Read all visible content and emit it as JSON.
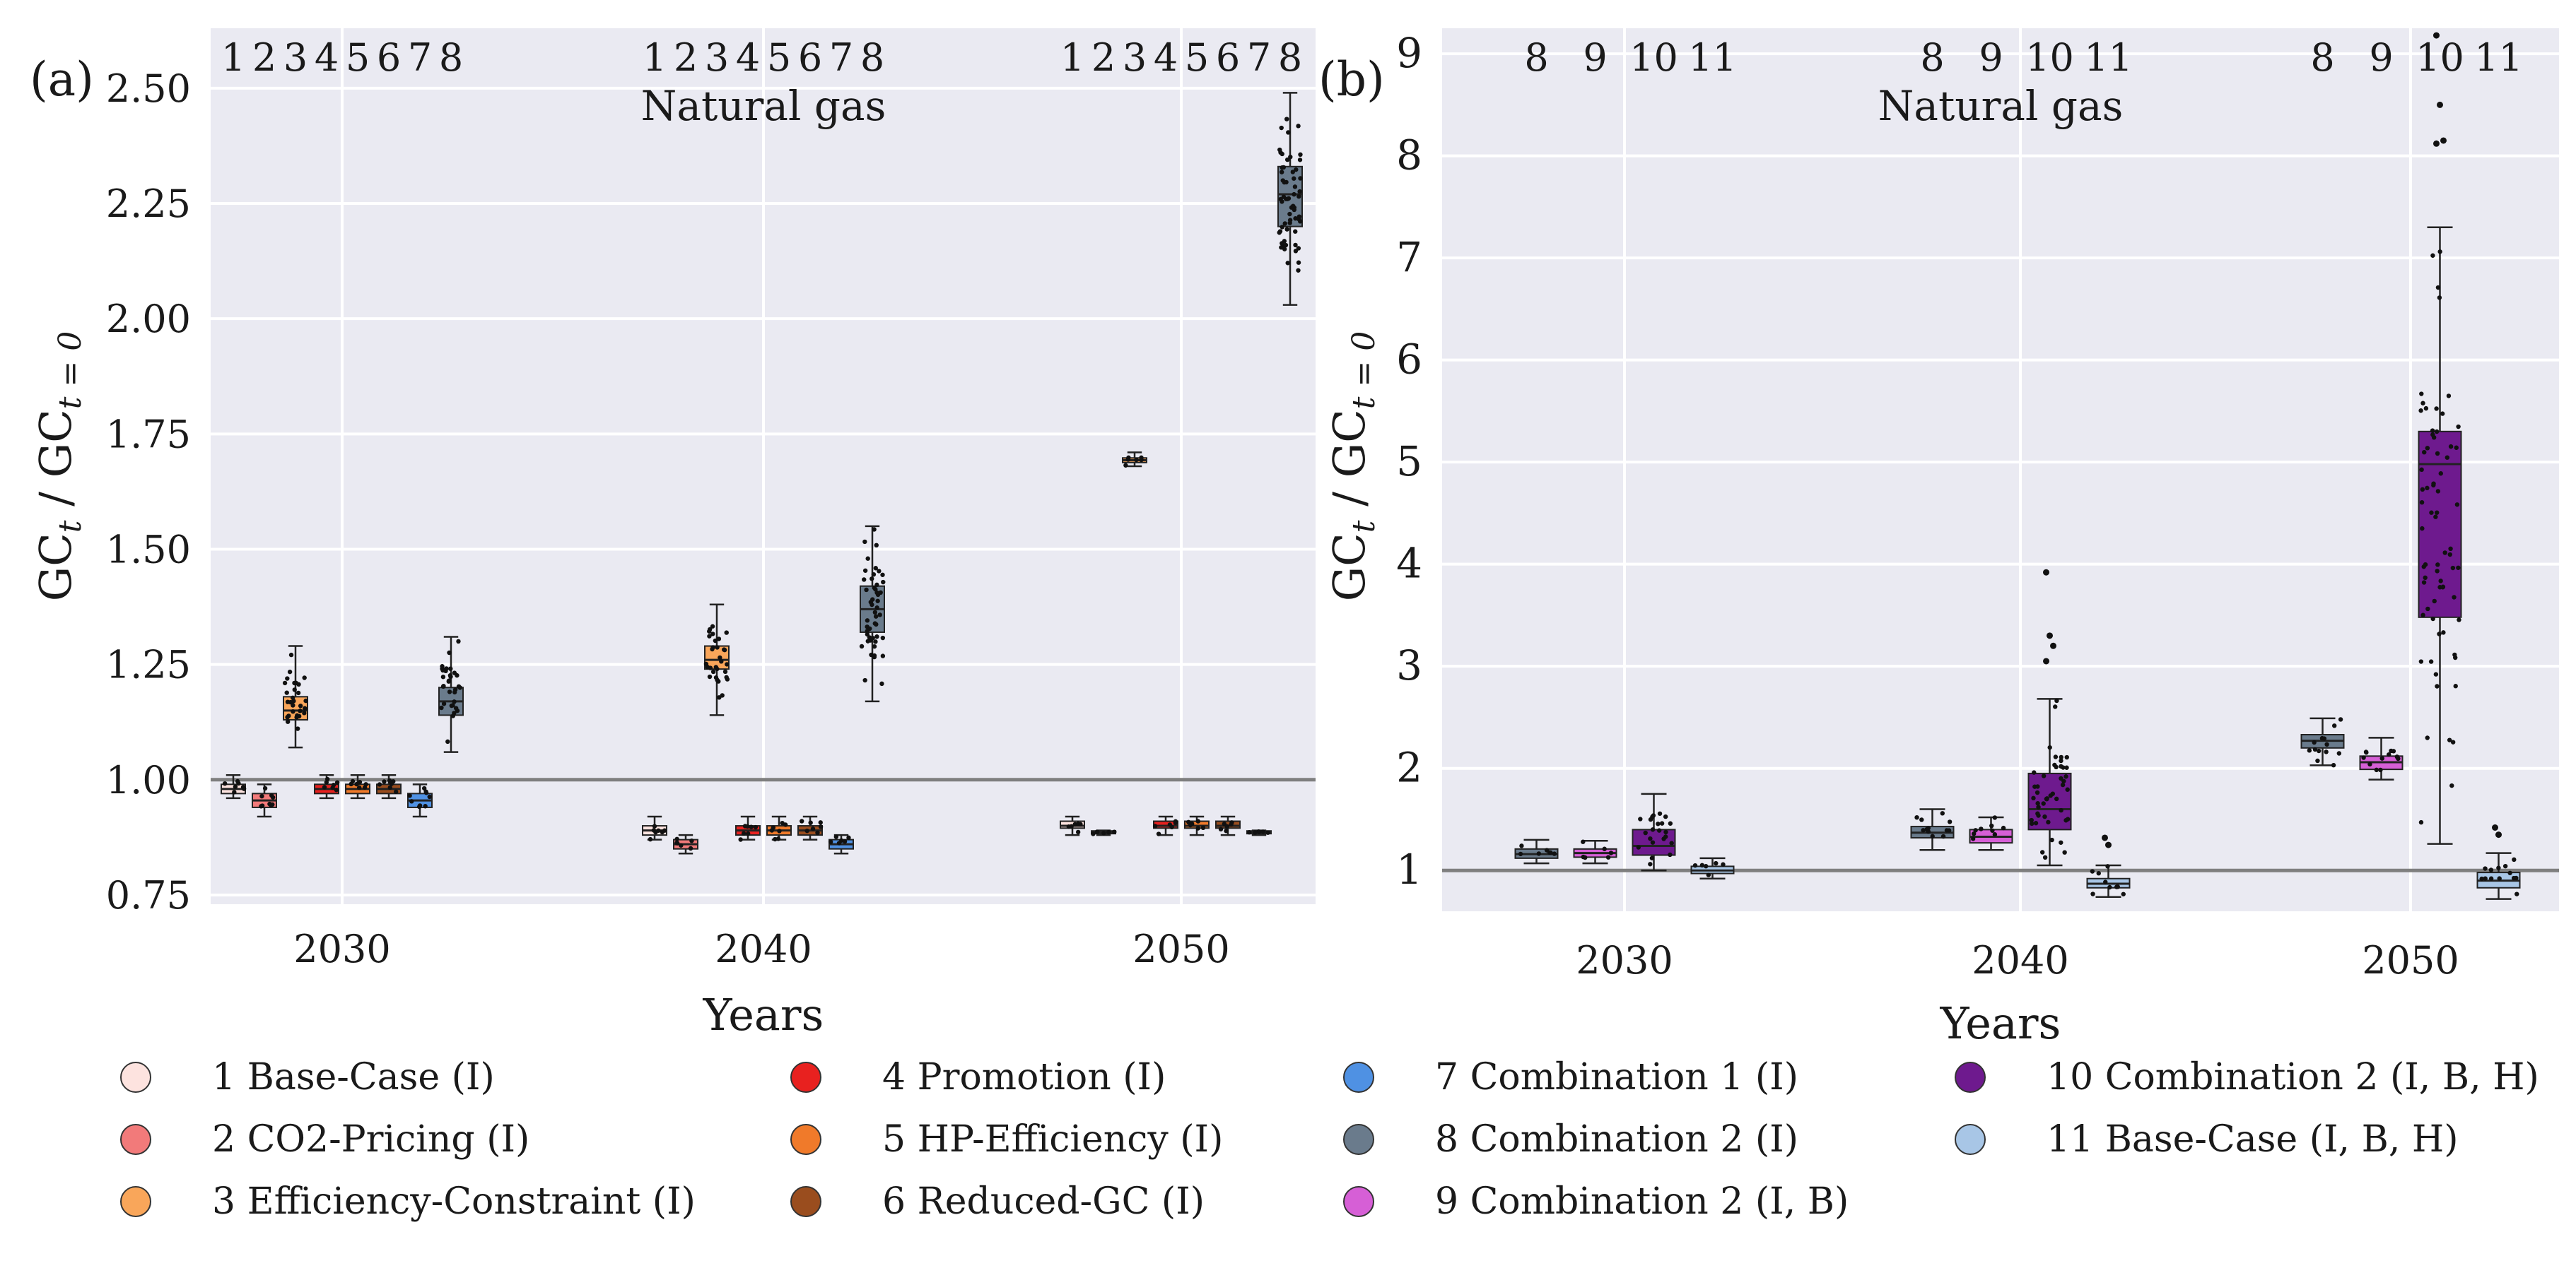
{
  "chart_data": [
    {
      "panel_label": "(a)",
      "type": "box",
      "title": "Natural gas",
      "xlabel": "Years",
      "ylabel": "GC",
      "ylabel_sub": "t",
      "ylabel_den": "GC",
      "ylabel_den_sub": "t = 0",
      "ylim": [
        0.73,
        2.63
      ],
      "yticks": [
        "0.75",
        "1.00",
        "1.25",
        "1.50",
        "1.75",
        "2.00",
        "2.25",
        "2.50"
      ],
      "ytick_values": [
        0.75,
        1.0,
        1.25,
        1.5,
        1.75,
        2.0,
        2.25,
        2.5
      ],
      "reference_line": 1.0,
      "groups": [
        "2030",
        "2040",
        "2050"
      ],
      "scenario_numbers": [
        "1",
        "2",
        "3",
        "4",
        "5",
        "6",
        "7",
        "8"
      ],
      "series": [
        {
          "id": "1",
          "color": "#fde3df",
          "boxes": [
            {
              "q1": 0.97,
              "median": 0.98,
              "q3": 0.99,
              "lo": 0.96,
              "hi": 1.01
            },
            {
              "q1": 0.88,
              "median": 0.89,
              "q3": 0.9,
              "lo": 0.87,
              "hi": 0.92
            },
            {
              "q1": 0.895,
              "median": 0.9,
              "q3": 0.91,
              "lo": 0.88,
              "hi": 0.92
            }
          ]
        },
        {
          "id": "2",
          "color": "#f27a7a",
          "boxes": [
            {
              "q1": 0.94,
              "median": 0.955,
              "q3": 0.97,
              "lo": 0.92,
              "hi": 0.99
            },
            {
              "q1": 0.85,
              "median": 0.86,
              "q3": 0.87,
              "lo": 0.84,
              "hi": 0.88
            },
            {
              "q1": 0.883,
              "median": 0.886,
              "q3": 0.889,
              "lo": 0.88,
              "hi": 0.89
            }
          ]
        },
        {
          "id": "3",
          "color": "#f9a65a",
          "boxes": [
            {
              "q1": 1.13,
              "median": 1.15,
              "q3": 1.18,
              "lo": 1.07,
              "hi": 1.29
            },
            {
              "q1": 1.24,
              "median": 1.26,
              "q3": 1.29,
              "lo": 1.14,
              "hi": 1.38
            },
            {
              "q1": 1.688,
              "median": 1.693,
              "q3": 1.698,
              "lo": 1.68,
              "hi": 1.71
            }
          ]
        },
        {
          "id": "4",
          "color": "#e8211f",
          "boxes": [
            {
              "q1": 0.97,
              "median": 0.98,
              "q3": 0.99,
              "lo": 0.96,
              "hi": 1.01
            },
            {
              "q1": 0.88,
              "median": 0.89,
              "q3": 0.9,
              "lo": 0.87,
              "hi": 0.92
            },
            {
              "q1": 0.895,
              "median": 0.9,
              "q3": 0.91,
              "lo": 0.88,
              "hi": 0.92
            }
          ]
        },
        {
          "id": "5",
          "color": "#f07a2a",
          "boxes": [
            {
              "q1": 0.97,
              "median": 0.98,
              "q3": 0.99,
              "lo": 0.96,
              "hi": 1.01
            },
            {
              "q1": 0.88,
              "median": 0.89,
              "q3": 0.9,
              "lo": 0.87,
              "hi": 0.92
            },
            {
              "q1": 0.895,
              "median": 0.9,
              "q3": 0.91,
              "lo": 0.88,
              "hi": 0.92
            }
          ]
        },
        {
          "id": "6",
          "color": "#9a4d1e",
          "boxes": [
            {
              "q1": 0.97,
              "median": 0.98,
              "q3": 0.99,
              "lo": 0.96,
              "hi": 1.01
            },
            {
              "q1": 0.88,
              "median": 0.89,
              "q3": 0.9,
              "lo": 0.87,
              "hi": 0.92
            },
            {
              "q1": 0.895,
              "median": 0.9,
              "q3": 0.91,
              "lo": 0.88,
              "hi": 0.92
            }
          ]
        },
        {
          "id": "7",
          "color": "#4f91e3",
          "boxes": [
            {
              "q1": 0.94,
              "median": 0.955,
              "q3": 0.97,
              "lo": 0.92,
              "hi": 0.99
            },
            {
              "q1": 0.85,
              "median": 0.86,
              "q3": 0.87,
              "lo": 0.84,
              "hi": 0.88
            },
            {
              "q1": 0.883,
              "median": 0.886,
              "q3": 0.889,
              "lo": 0.88,
              "hi": 0.89
            }
          ]
        },
        {
          "id": "8",
          "color": "#6a7b8c",
          "boxes": [
            {
              "q1": 1.14,
              "median": 1.17,
              "q3": 1.2,
              "lo": 1.06,
              "hi": 1.31
            },
            {
              "q1": 1.32,
              "median": 1.37,
              "q3": 1.42,
              "lo": 1.17,
              "hi": 1.55
            },
            {
              "q1": 2.2,
              "median": 2.27,
              "q3": 2.33,
              "lo": 2.03,
              "hi": 2.49
            }
          ]
        }
      ]
    },
    {
      "panel_label": "(b)",
      "type": "box",
      "title": "Natural gas",
      "xlabel": "Years",
      "ylabel": "GC",
      "ylabel_sub": "t",
      "ylabel_den": "GC",
      "ylabel_den_sub": "t = 0",
      "ylim": [
        0.6,
        9.25
      ],
      "yticks": [
        "1",
        "2",
        "3",
        "4",
        "5",
        "6",
        "7",
        "8",
        "9"
      ],
      "ytick_values": [
        1,
        2,
        3,
        4,
        5,
        6,
        7,
        8,
        9
      ],
      "reference_line": 1.0,
      "groups": [
        "2030",
        "2040",
        "2050"
      ],
      "scenario_numbers": [
        "8",
        "9",
        "10",
        "11"
      ],
      "series": [
        {
          "id": "8",
          "color": "#6a7b8c",
          "boxes": [
            {
              "q1": 1.12,
              "median": 1.16,
              "q3": 1.21,
              "lo": 1.07,
              "hi": 1.3
            },
            {
              "q1": 1.32,
              "median": 1.37,
              "q3": 1.43,
              "lo": 1.2,
              "hi": 1.6
            },
            {
              "q1": 2.2,
              "median": 2.27,
              "q3": 2.33,
              "lo": 2.03,
              "hi": 2.49
            }
          ]
        },
        {
          "id": "9",
          "color": "#d65fd6",
          "boxes": [
            {
              "q1": 1.13,
              "median": 1.17,
              "q3": 1.21,
              "lo": 1.07,
              "hi": 1.29
            },
            {
              "q1": 1.27,
              "median": 1.33,
              "q3": 1.4,
              "lo": 1.2,
              "hi": 1.52
            },
            {
              "q1": 1.99,
              "median": 2.06,
              "q3": 2.12,
              "lo": 1.89,
              "hi": 2.3
            }
          ]
        },
        {
          "id": "10",
          "color": "#6e1a8e",
          "boxes": [
            {
              "q1": 1.15,
              "median": 1.24,
              "q3": 1.4,
              "lo": 1.0,
              "hi": 1.75
            },
            {
              "q1": 1.4,
              "median": 1.6,
              "q3": 1.95,
              "lo": 1.05,
              "hi": 2.68
            },
            {
              "q1": 3.48,
              "median": 4.98,
              "q3": 5.3,
              "lo": 1.26,
              "hi": 7.3
            }
          ]
        },
        {
          "id": "11",
          "color": "#a8c6e6",
          "boxes": [
            {
              "q1": 0.97,
              "median": 1.0,
              "q3": 1.04,
              "lo": 0.92,
              "hi": 1.12
            },
            {
              "q1": 0.83,
              "median": 0.87,
              "q3": 0.92,
              "lo": 0.74,
              "hi": 1.05
            },
            {
              "q1": 0.83,
              "median": 0.9,
              "q3": 0.98,
              "lo": 0.72,
              "hi": 1.17
            }
          ]
        }
      ],
      "outliers": [
        {
          "group": "2040",
          "series": "10",
          "values": [
            3.92,
            3.3,
            3.2,
            3.05
          ]
        },
        {
          "group": "2050",
          "series": "10",
          "values": [
            9.18,
            8.5,
            8.15,
            8.12
          ]
        },
        {
          "group": "2040",
          "series": "11",
          "values": [
            1.32,
            1.25
          ]
        },
        {
          "group": "2050",
          "series": "11",
          "values": [
            1.42,
            1.35
          ]
        }
      ]
    }
  ],
  "legend": {
    "items": [
      {
        "label": "1 Base-Case (I)",
        "color": "#fde3df",
        "icon": "circle-marker"
      },
      {
        "label": "2 CO2-Pricing (I)",
        "color": "#f27a7a",
        "icon": "circle-marker"
      },
      {
        "label": "3 Efficiency-Constraint (I)",
        "color": "#f9a65a",
        "icon": "circle-marker"
      },
      {
        "label": "4 Promotion (I)",
        "color": "#e8211f",
        "icon": "circle-marker"
      },
      {
        "label": "5 HP-Efficiency (I)",
        "color": "#f07a2a",
        "icon": "circle-marker"
      },
      {
        "label": "6 Reduced-GC (I)",
        "color": "#9a4d1e",
        "icon": "circle-marker"
      },
      {
        "label": "7 Combination 1 (I)",
        "color": "#4f91e3",
        "icon": "circle-marker"
      },
      {
        "label": "8 Combination 2 (I)",
        "color": "#6a7b8c",
        "icon": "circle-marker"
      },
      {
        "label": "9 Combination 2 (I, B)",
        "color": "#d65fd6",
        "icon": "circle-marker"
      },
      {
        "label": "10 Combination 2 (I, B, H)",
        "color": "#6e1a8e",
        "icon": "circle-marker"
      },
      {
        "label": "11 Base-Case (I, B, H)",
        "color": "#a8c6e6",
        "icon": "circle-marker"
      }
    ]
  }
}
